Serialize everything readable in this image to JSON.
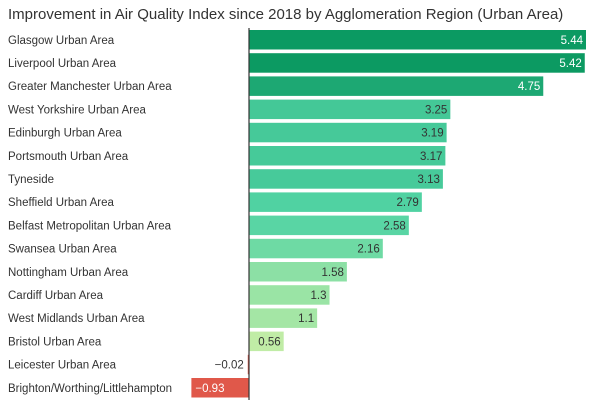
{
  "chart_data": {
    "type": "bar",
    "orientation": "horizontal",
    "title": "Improvement in Air Quality Index since 2018 by Agglomeration Region (Urban Area)",
    "categories": [
      "Glasgow Urban Area",
      "Liverpool Urban Area",
      "Greater Manchester Urban Area",
      "West Yorkshire Urban Area",
      "Edinburgh Urban Area",
      "Portsmouth Urban Area",
      "Tyneside",
      "Sheffield Urban Area",
      "Belfast Metropolitan Urban Area",
      "Swansea Urban Area",
      "Nottingham Urban Area",
      "Cardiff Urban Area",
      "West Midlands Urban Area",
      "Bristol Urban Area",
      "Leicester Urban Area",
      "Brighton/Worthing/Littlehampton"
    ],
    "values": [
      5.44,
      5.42,
      4.75,
      3.25,
      3.19,
      3.17,
      3.13,
      2.79,
      2.58,
      2.16,
      1.58,
      1.3,
      1.1,
      0.56,
      -0.02,
      -0.93
    ],
    "value_labels": [
      "5.44",
      "5.42",
      "4.75",
      "3.25",
      "3.19",
      "3.17",
      "3.13",
      "2.79",
      "2.58",
      "2.16",
      "1.58",
      "1.3",
      "1.1",
      "0.56",
      "−0.02",
      "−0.93"
    ],
    "xlim": [
      -1.0,
      5.44
    ],
    "grid": false,
    "legend": "none",
    "colors": {
      "positive_high": "#0b9a62",
      "positive_mid": "#52d3a4",
      "positive_low": "#dcf3a6",
      "negative": "#e0584a",
      "zero_line": "#333333"
    }
  }
}
